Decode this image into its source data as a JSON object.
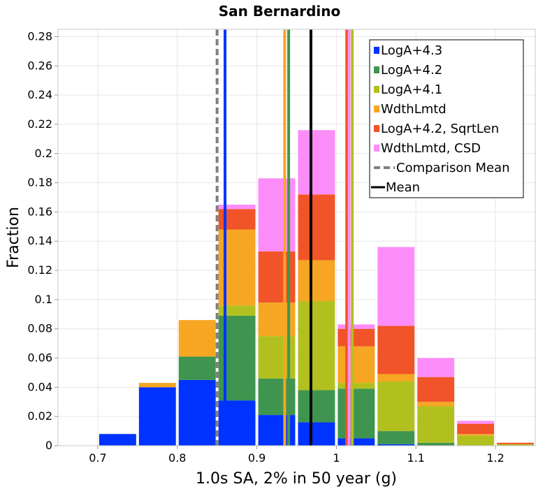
{
  "chart_data": {
    "type": "bar",
    "stacked": true,
    "title": "San Bernardino",
    "xlabel": "1.0s SA, 2% in 50 year (g)",
    "ylabel": "Fraction",
    "xlim": [
      0.65,
      1.25
    ],
    "ylim": [
      0,
      0.285
    ],
    "xticks": [
      0.7,
      0.8,
      0.9,
      1,
      1.1,
      1.2
    ],
    "xtick_labels": [
      "0.7",
      "0.8",
      "0.9",
      "1",
      "1.1",
      "1.2"
    ],
    "yticks": [
      0,
      0.02,
      0.04,
      0.06,
      0.08,
      0.1,
      0.12,
      0.14,
      0.16,
      0.18,
      0.2,
      0.22,
      0.24,
      0.26,
      0.28
    ],
    "ytick_labels": [
      "0",
      "0.02",
      "0.04",
      "0.06",
      "0.08",
      "0.1",
      "0.12",
      "0.14",
      "0.16",
      "0.18",
      "0.2",
      "0.22",
      "0.24",
      "0.26",
      "0.28"
    ],
    "grid": true,
    "legend_position": "top-right",
    "bin_width": 0.05,
    "bin_centers": [
      0.725,
      0.775,
      0.825,
      0.875,
      0.925,
      0.975,
      1.025,
      1.075,
      1.125,
      1.175,
      1.225
    ],
    "series": [
      {
        "name": "LogA+4.3",
        "color": "#0033ff",
        "values": [
          0.008,
          0.04,
          0.045,
          0.031,
          0.021,
          0.016,
          0.005,
          0.001,
          0,
          0,
          0
        ]
      },
      {
        "name": "LogA+4.2",
        "color": "#3f9550",
        "values": [
          0,
          0,
          0.016,
          0.058,
          0.025,
          0.022,
          0.034,
          0.009,
          0.002,
          0,
          0
        ]
      },
      {
        "name": "LogA+4.1",
        "color": "#b2c01f",
        "values": [
          0,
          0,
          0,
          0.007,
          0.029,
          0.061,
          0.004,
          0.034,
          0.025,
          0.007,
          0.001
        ]
      },
      {
        "name": "WdthLmtd",
        "color": "#f6a623",
        "values": [
          0,
          0.003,
          0.025,
          0.052,
          0.023,
          0.028,
          0.025,
          0.005,
          0.003,
          0.001,
          0
        ]
      },
      {
        "name": "LogA+4.2, SqrtLen",
        "color": "#f05428",
        "values": [
          0,
          0,
          0,
          0.014,
          0.035,
          0.045,
          0.012,
          0.033,
          0.017,
          0.007,
          0.001
        ]
      },
      {
        "name": "WdthLmtd, CSD",
        "color": "#fc8df8",
        "values": [
          0,
          0,
          0,
          0.003,
          0.05,
          0.044,
          0.003,
          0.054,
          0.013,
          0.002,
          0
        ]
      }
    ],
    "vertical_lines": [
      {
        "name": "LogA+4.3",
        "x": 0.86,
        "color": "#0033ff",
        "style": "solid"
      },
      {
        "name": "LogA+4.2",
        "x": 0.94,
        "color": "#3f9550",
        "style": "solid"
      },
      {
        "name": "WdthLmtd",
        "x": 0.935,
        "color": "#f6a623",
        "style": "solid"
      },
      {
        "name": "LogA+4.2, SqrtLen",
        "x": 1.013,
        "color": "#f05428",
        "style": "solid"
      },
      {
        "name": "WdthLmtd, CSD",
        "x": 1.016,
        "color": "#fc8df8",
        "style": "solid"
      },
      {
        "name": "LogA+4.1",
        "x": 1.02,
        "color": "#b2c01f",
        "style": "solid"
      },
      {
        "name": "Comparison Mean",
        "x": 0.85,
        "color": "#808080",
        "style": "dashed"
      },
      {
        "name": "Mean",
        "x": 0.968,
        "color": "#000000",
        "style": "solid"
      }
    ],
    "legend": [
      {
        "label": "LogA+4.3",
        "kind": "square",
        "color": "#0033ff"
      },
      {
        "label": "LogA+4.2",
        "kind": "square",
        "color": "#3f9550"
      },
      {
        "label": "LogA+4.1",
        "kind": "square",
        "color": "#b2c01f"
      },
      {
        "label": "WdthLmtd",
        "kind": "square",
        "color": "#f6a623"
      },
      {
        "label": "LogA+4.2, SqrtLen",
        "kind": "square",
        "color": "#f05428"
      },
      {
        "label": "WdthLmtd, CSD",
        "kind": "square",
        "color": "#fc8df8"
      },
      {
        "label": "Comparison Mean",
        "kind": "dashed-line",
        "color": "#808080"
      },
      {
        "label": "Mean",
        "kind": "line",
        "color": "#000000"
      }
    ]
  }
}
